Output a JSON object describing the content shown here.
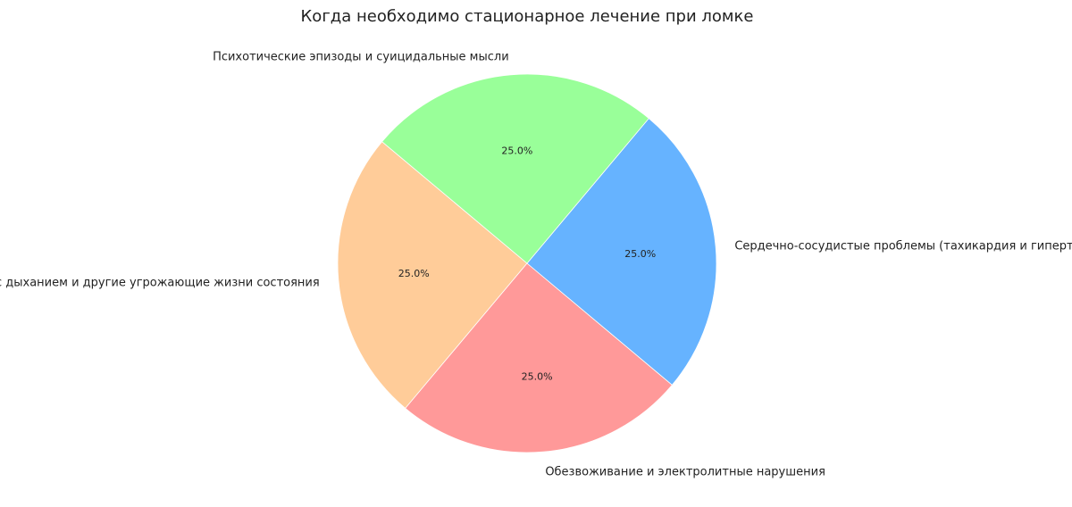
{
  "chart_data": {
    "type": "pie",
    "title": "Когда необходимо стационарное лечение при ломке",
    "slices": [
      {
        "label": "Проблемы с дыханием и другие угрожающие жизни состояния",
        "value": 25.0,
        "pct_label": "25.0%",
        "color": "#ffcc99"
      },
      {
        "label": "Обезвоживание и электролитные нарушения",
        "value": 25.0,
        "pct_label": "25.0%",
        "color": "#ff9999"
      },
      {
        "label": "Сердечно-сосудистые проблемы (тахикардия и гипертония)",
        "value": 25.0,
        "pct_label": "25.0%",
        "color": "#66b3ff"
      },
      {
        "label": "Психотические эпизоды и суицидальные мысли",
        "value": 25.0,
        "pct_label": "25.0%",
        "color": "#99ff99"
      }
    ],
    "start_angle_deg": 140,
    "direction": "counterclockwise",
    "legend": "none"
  }
}
